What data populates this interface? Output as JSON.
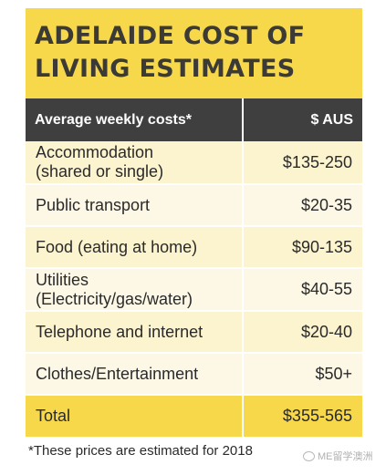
{
  "title": "ADELAIDE COST OF LIVING ESTIMATES",
  "table": {
    "headers": [
      "Average weekly costs*",
      "$ AUS"
    ],
    "rows": [
      {
        "item": "Accommodation\n(shared or single)",
        "value": "$135-250"
      },
      {
        "item": "Public transport",
        "value": "$20-35"
      },
      {
        "item": "Food (eating at home)",
        "value": "$90-135"
      },
      {
        "item": "Utilities\n(Electricity/gas/water)",
        "value": "$40-55"
      },
      {
        "item": "Telephone and internet",
        "value": "$20-40"
      },
      {
        "item": "Clothes/Entertainment",
        "value": "$50+"
      }
    ],
    "total": {
      "item": "Total",
      "value": "$355-565"
    }
  },
  "footnote": "*These prices are estimated for 2018",
  "watermark": "ME留学澳洲",
  "colors": {
    "yellow": "#f7d84a",
    "header": "#3f3f3f",
    "row_light": "#fcf3cf"
  }
}
